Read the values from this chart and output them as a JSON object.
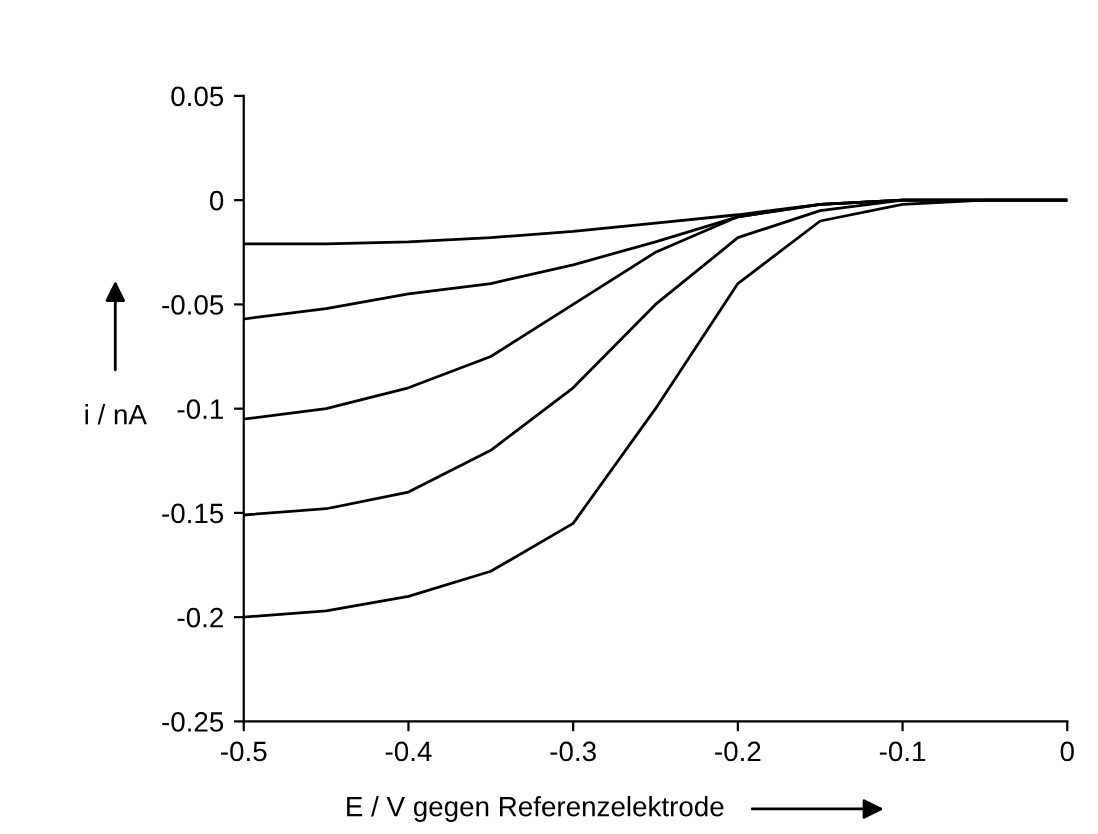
{
  "chart_data": {
    "type": "line",
    "xlabel": "E / V gegen Referenzelektrode",
    "ylabel": "i / nA",
    "x": [
      -0.5,
      -0.45,
      -0.4,
      -0.35,
      -0.3,
      -0.25,
      -0.2,
      -0.15,
      -0.1,
      -0.05,
      0
    ],
    "series": [
      {
        "color": "#000000",
        "values": [
          -0.021,
          -0.021,
          -0.02,
          -0.018,
          -0.015,
          -0.011,
          -0.007,
          -0.002,
          0,
          0,
          0
        ]
      },
      {
        "color": "#000000",
        "values": [
          -0.057,
          -0.052,
          -0.045,
          -0.04,
          -0.031,
          -0.02,
          -0.008,
          -0.002,
          0,
          0,
          0
        ]
      },
      {
        "color": "#000000",
        "values": [
          -0.105,
          -0.1,
          -0.09,
          -0.075,
          -0.05,
          -0.025,
          -0.008,
          -0.002,
          0,
          0,
          0
        ]
      },
      {
        "color": "#000000",
        "values": [
          -0.151,
          -0.148,
          -0.14,
          -0.12,
          -0.09,
          -0.05,
          -0.018,
          -0.005,
          0,
          0,
          0
        ]
      },
      {
        "color": "#000000",
        "values": [
          -0.2,
          -0.197,
          -0.19,
          -0.178,
          -0.155,
          -0.1,
          -0.04,
          -0.01,
          -0.002,
          0,
          0
        ]
      }
    ],
    "xlim": [
      -0.5,
      0
    ],
    "xticks": [
      -0.5,
      -0.4,
      -0.3,
      -0.2,
      -0.1,
      0
    ],
    "ylim": [
      -0.25,
      0.05
    ],
    "yticks": [
      -0.25,
      -0.2,
      -0.15,
      -0.1,
      -0.05,
      0,
      0.05
    ],
    "grid": false,
    "marker": "none",
    "line_style": "solid"
  }
}
